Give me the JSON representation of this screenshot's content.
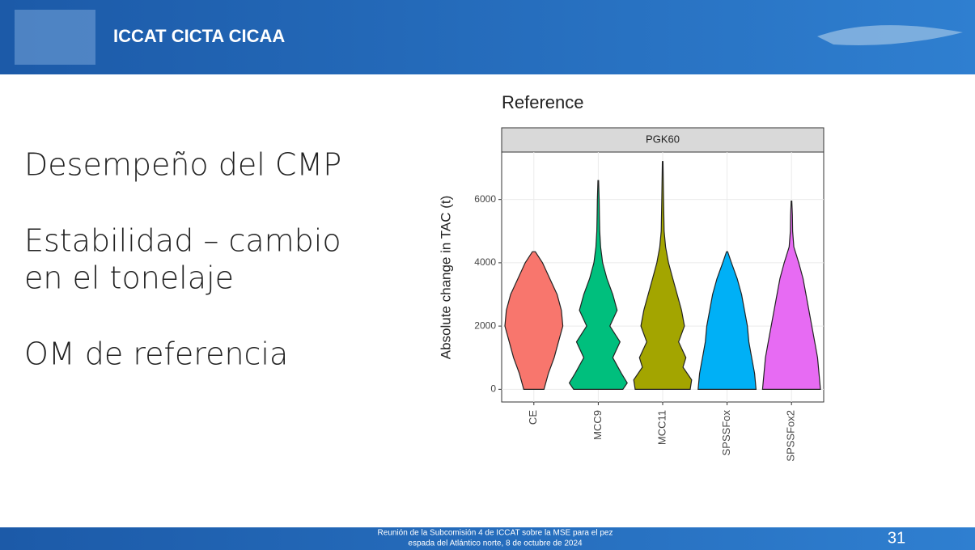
{
  "header": {
    "title": "ICCAT  CICTA  CICAA"
  },
  "bullets": [
    [
      "Desempeño del CMP"
    ],
    [
      "Estabilidad – cambio",
      "en el tonelaje"
    ],
    [
      "OM de referencia"
    ]
  ],
  "footer": {
    "lines": [
      "Reunión de la Subcomisión 4 de ICCAT sobre la MSE para el pez",
      "espada del Atlántico norte, 8 de octubre de 2024"
    ],
    "page_number": "31"
  },
  "chart_data": {
    "type": "violin",
    "title": "Reference",
    "facet": "PGK60",
    "y_label": "Absolute change in TAC (t)",
    "categories": [
      "CE",
      "MCC9",
      "MCC11",
      "SPSSFox",
      "SPSSFox2"
    ],
    "colors": [
      "#F8766D",
      "#00BF7D",
      "#A3A500",
      "#00B0F6",
      "#E76BF3"
    ],
    "violins": [
      {
        "y": [
          0,
          500,
          1000,
          1500,
          2000,
          2500,
          3000,
          3500,
          4000,
          4350
        ],
        "density": [
          0.35,
          0.5,
          0.7,
          0.85,
          1.0,
          0.95,
          0.8,
          0.55,
          0.3,
          0.05
        ]
      },
      {
        "y": [
          0,
          200,
          500,
          1000,
          1500,
          2000,
          2500,
          3000,
          3500,
          4000,
          4500,
          5000,
          5500,
          6000,
          6600
        ],
        "density": [
          0.85,
          1.0,
          0.8,
          0.5,
          0.75,
          0.4,
          0.65,
          0.5,
          0.3,
          0.15,
          0.08,
          0.05,
          0.04,
          0.03,
          0.01
        ]
      },
      {
        "y": [
          0,
          300,
          700,
          1000,
          1500,
          2000,
          2500,
          3000,
          3500,
          4000,
          4500,
          5000,
          6000,
          7200
        ],
        "density": [
          0.95,
          1.0,
          0.7,
          0.8,
          0.55,
          0.75,
          0.65,
          0.5,
          0.35,
          0.2,
          0.1,
          0.05,
          0.03,
          0.01
        ]
      },
      {
        "y": [
          0,
          500,
          1000,
          1500,
          2000,
          2500,
          3000,
          3500,
          4000,
          4350
        ],
        "density": [
          1.0,
          0.95,
          0.85,
          0.75,
          0.7,
          0.6,
          0.5,
          0.35,
          0.15,
          0.02
        ]
      },
      {
        "y": [
          0,
          500,
          1000,
          1500,
          2000,
          2500,
          3000,
          3500,
          4000,
          4500,
          5000,
          5500,
          5950
        ],
        "density": [
          1.0,
          0.95,
          0.9,
          0.8,
          0.7,
          0.6,
          0.5,
          0.4,
          0.25,
          0.08,
          0.04,
          0.03,
          0.01
        ]
      }
    ],
    "ylim": [
      -400,
      7500
    ],
    "yticks": [
      0,
      2000,
      4000,
      6000
    ],
    "grid": true
  }
}
